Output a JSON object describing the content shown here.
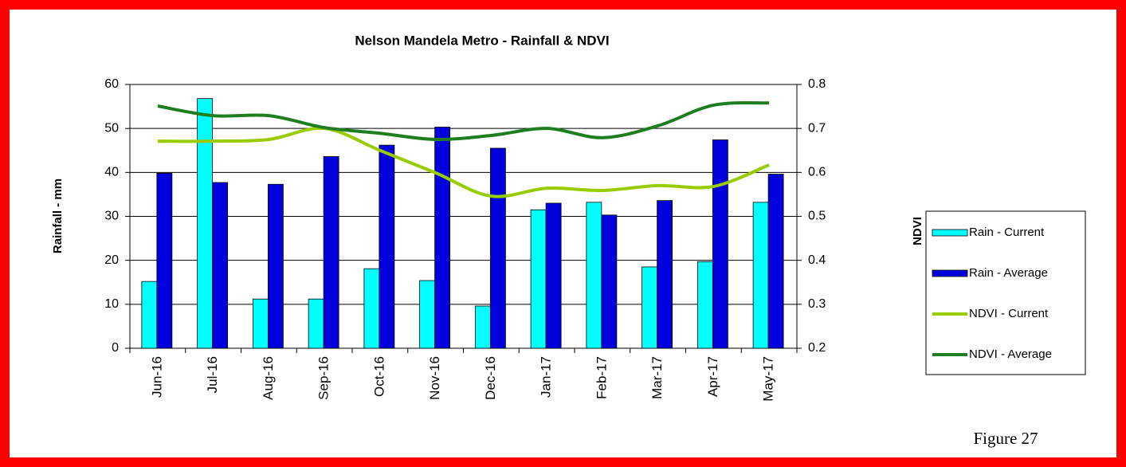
{
  "chart_data": {
    "type": "bar_line",
    "title": "Nelson Mandela Metro - Rainfall & NDVI",
    "ylabel": "Rainfall - mm",
    "y2label": "NDVI",
    "caption": "Figure 27",
    "categories": [
      "Jun-16",
      "Jul-16",
      "Aug-16",
      "Sep-16",
      "Oct-16",
      "Nov-16",
      "Dec-16",
      "Jan-17",
      "Feb-17",
      "Mar-17",
      "Apr-17",
      "May-17"
    ],
    "series": [
      {
        "name": "Rain - Current",
        "type": "bar",
        "color": "#00ffff",
        "values": [
          15.2,
          56.8,
          11.2,
          11.2,
          18.1,
          15.4,
          9.6,
          31.5,
          33.2,
          18.5,
          19.7,
          33.2
        ]
      },
      {
        "name": "Rain - Average",
        "type": "bar",
        "color": "#0000dd",
        "values": [
          39.8,
          37.7,
          37.3,
          43.6,
          46.2,
          50.3,
          45.5,
          33.0,
          30.3,
          33.6,
          47.4,
          39.6
        ]
      },
      {
        "name": "NDVI - Current",
        "type": "line",
        "axis": "y2",
        "color": "#99cc00",
        "values": [
          0.671,
          0.671,
          0.675,
          0.7,
          0.65,
          0.599,
          0.546,
          0.564,
          0.559,
          0.57,
          0.568,
          0.617
        ]
      },
      {
        "name": "NDVI - Average",
        "type": "line",
        "axis": "y2",
        "color": "#1e7d1e",
        "values": [
          0.751,
          0.729,
          0.729,
          0.702,
          0.689,
          0.675,
          0.684,
          0.7,
          0.679,
          0.706,
          0.753,
          0.758
        ]
      }
    ],
    "ylim": [
      0,
      60
    ],
    "yticks": [
      0,
      10,
      20,
      30,
      40,
      50,
      60
    ],
    "y2lim": [
      0.2,
      0.8
    ],
    "y2ticks": [
      0.2,
      0.3,
      0.4,
      0.5,
      0.6,
      0.7,
      0.8
    ],
    "grid": true,
    "legend": "right"
  }
}
